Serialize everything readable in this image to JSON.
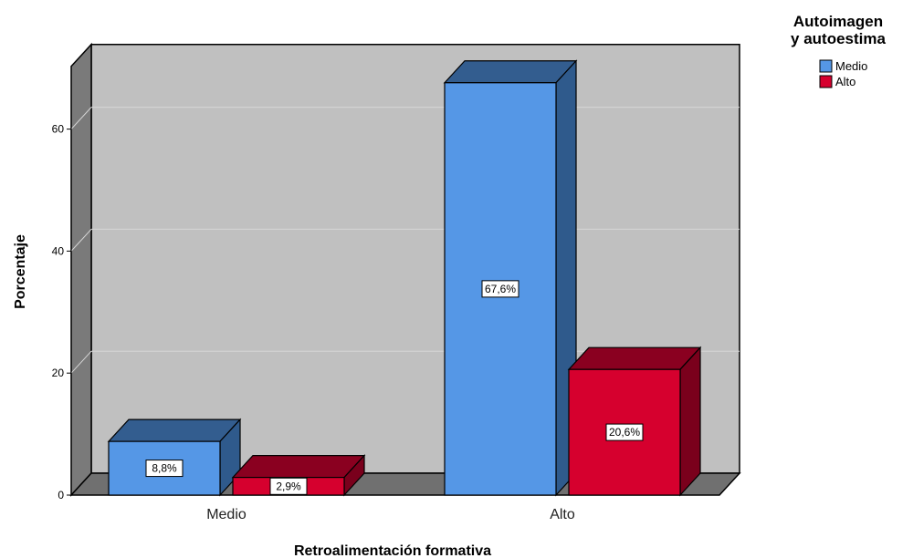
{
  "chart_data": {
    "type": "bar",
    "style": "3d-clustered",
    "categories": [
      "Medio",
      "Alto"
    ],
    "series": [
      {
        "name": "Medio",
        "values": [
          8.8,
          67.6
        ],
        "labels": [
          "8,8%",
          "67,6%"
        ],
        "color": "#5597e6",
        "top_color": "#335d8f",
        "side_color": "#2f5a8c"
      },
      {
        "name": "Alto",
        "values": [
          2.9,
          20.6
        ],
        "labels": [
          "2,9%",
          "20,6%"
        ],
        "color": "#d6002e",
        "top_color": "#8a0020",
        "side_color": "#7a001c"
      }
    ],
    "xlabel": "Retroalimentación formativa",
    "ylabel": "Porcentaje",
    "yticks": [
      0,
      20,
      40,
      60
    ],
    "ylim": [
      0,
      70
    ],
    "grid": true,
    "legend": {
      "title_lines": [
        "Autoimagen",
        "y autoestima"
      ],
      "position": "top-right"
    },
    "colors": {
      "wall": "#c0c0c0",
      "side_wall": "#7a7a7a",
      "floor": "#707070",
      "gridline": "#d6d6d6"
    }
  }
}
